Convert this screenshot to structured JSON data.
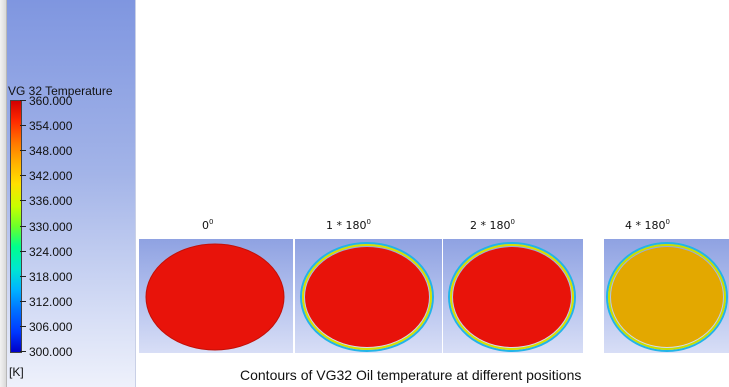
{
  "legend": {
    "title": "VG 32 Temperature",
    "ticks": [
      "360.000",
      "354.000",
      "348.000",
      "342.000",
      "336.000",
      "330.000",
      "324.000",
      "318.000",
      "312.000",
      "306.000",
      "300.000"
    ],
    "unit": "[K]"
  },
  "positions": [
    {
      "label": "0",
      "exp": "0",
      "fill": "#e8130a",
      "rim": false
    },
    {
      "label": "1 * 180",
      "exp": "0",
      "fill": "#e8130a",
      "rim": true
    },
    {
      "label": "2 * 180",
      "exp": "0",
      "fill": "#e8130a",
      "rim": true
    },
    {
      "label": "4 * 180",
      "exp": "0",
      "fill": "#e3a800",
      "rim": true
    }
  ],
  "caption": "Contours of VG32 Oil temperature at different positions"
}
